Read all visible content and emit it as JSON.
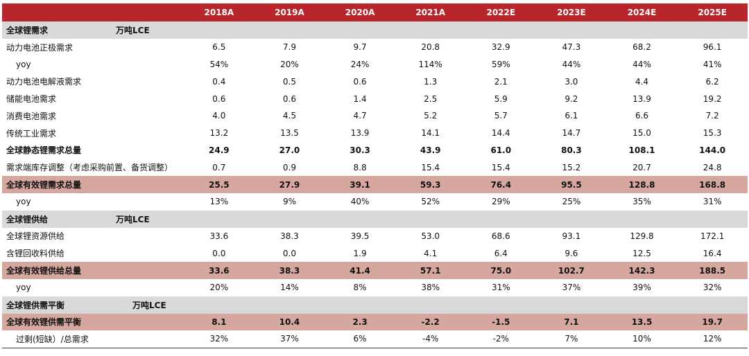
{
  "header": {
    "corner": "",
    "years": [
      "2018A",
      "2019A",
      "2020A",
      "2021A",
      "2022E",
      "2023E",
      "2024E",
      "2025E"
    ]
  },
  "rows": [
    {
      "type": "section",
      "label": "全球锂需求",
      "unit": "万吨LCE"
    },
    {
      "type": "normal",
      "label": "动力电池正极需求",
      "values": [
        "6.5",
        "7.9",
        "9.7",
        "20.8",
        "32.9",
        "47.3",
        "68.2",
        "96.1"
      ]
    },
    {
      "type": "indent",
      "label": "yoy",
      "values": [
        "54%",
        "20%",
        "24%",
        "114%",
        "59%",
        "44%",
        "44%",
        "41%"
      ]
    },
    {
      "type": "normal",
      "label": "动力电池电解液需求",
      "values": [
        "0.4",
        "0.5",
        "0.6",
        "1.3",
        "2.1",
        "3.0",
        "4.4",
        "6.2"
      ]
    },
    {
      "type": "normal",
      "label": "储能电池需求",
      "values": [
        "0.6",
        "0.6",
        "1.4",
        "2.5",
        "5.9",
        "9.2",
        "13.9",
        "19.2"
      ]
    },
    {
      "type": "normal",
      "label": "消费电池需求",
      "values": [
        "4.0",
        "4.5",
        "4.7",
        "5.2",
        "5.7",
        "6.1",
        "6.6",
        "7.2"
      ]
    },
    {
      "type": "normal",
      "label": "传统工业需求",
      "values": [
        "13.2",
        "13.5",
        "13.9",
        "14.1",
        "14.4",
        "14.7",
        "15.0",
        "15.3"
      ]
    },
    {
      "type": "bold",
      "label": "全球静态锂需求总量",
      "values": [
        "24.9",
        "27.0",
        "30.3",
        "43.9",
        "61.0",
        "80.3",
        "108.1",
        "144.0"
      ]
    },
    {
      "type": "normal",
      "label": "需求端库存调整（考虑采购前置、备货调整）",
      "values": [
        "0.7",
        "0.9",
        "8.8",
        "15.4",
        "15.4",
        "15.2",
        "20.7",
        "24.8"
      ]
    },
    {
      "type": "highlight",
      "label": "全球有效锂需求总量",
      "values": [
        "25.5",
        "27.9",
        "39.1",
        "59.3",
        "76.4",
        "95.5",
        "128.8",
        "168.8"
      ]
    },
    {
      "type": "indent",
      "label": "yoy",
      "values": [
        "13%",
        "9%",
        "40%",
        "52%",
        "29%",
        "25%",
        "35%",
        "31%"
      ]
    },
    {
      "type": "section",
      "label": "全球锂供给",
      "unit": "万吨LCE"
    },
    {
      "type": "normal",
      "label": "全球锂资源供给",
      "values": [
        "33.6",
        "38.3",
        "39.5",
        "53.0",
        "68.6",
        "93.1",
        "129.8",
        "172.1"
      ]
    },
    {
      "type": "normal",
      "label": "含锂回收料供给",
      "values": [
        "0.0",
        "0.0",
        "1.9",
        "4.1",
        "6.4",
        "9.6",
        "12.5",
        "16.4"
      ]
    },
    {
      "type": "highlight",
      "label": "全球有效锂供给总量",
      "values": [
        "33.6",
        "38.3",
        "41.4",
        "57.1",
        "75.0",
        "102.7",
        "142.3",
        "188.5"
      ]
    },
    {
      "type": "indent",
      "label": "yoy",
      "values": [
        "20%",
        "14%",
        "8%",
        "38%",
        "31%",
        "37%",
        "39%",
        "32%"
      ]
    },
    {
      "type": "section",
      "label": "全球锂供需平衡",
      "unit": "万吨LCE"
    },
    {
      "type": "highlight",
      "label": "全球有效锂供需平衡",
      "values": [
        "8.1",
        "10.4",
        "2.3",
        "-2.2",
        "-1.5",
        "7.1",
        "13.5",
        "19.7"
      ]
    },
    {
      "type": "indent",
      "label": "过剩(短缺）/总需求",
      "values": [
        "32%",
        "37%",
        "6%",
        "-4%",
        "-2%",
        "7%",
        "10%",
        "12%"
      ]
    }
  ]
}
